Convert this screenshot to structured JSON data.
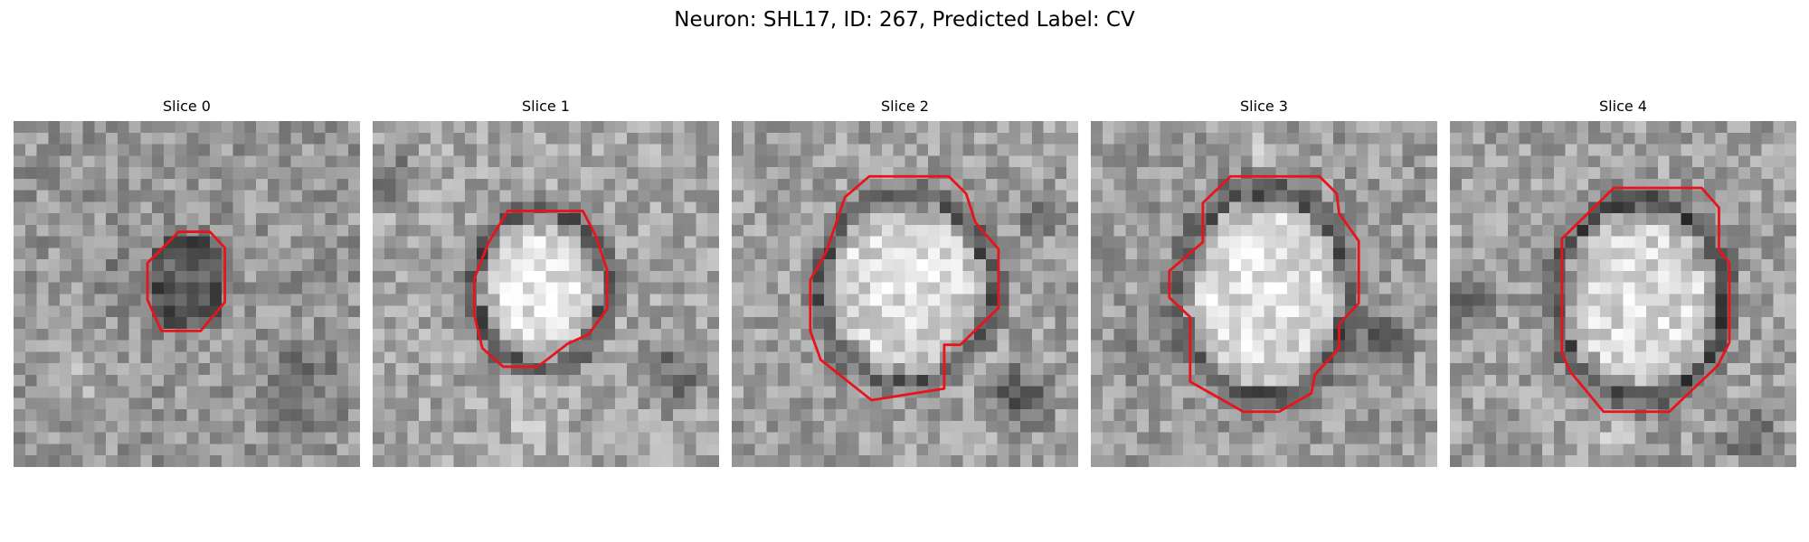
{
  "figure": {
    "title": "Neuron: SHL17, ID: 267, Predicted Label: CV"
  },
  "slices": [
    {
      "title": "Slice 0"
    },
    {
      "title": "Slice 1"
    },
    {
      "title": "Slice 2"
    },
    {
      "title": "Slice 3"
    },
    {
      "title": "Slice 4"
    }
  ],
  "contour_color": "#e8141c"
}
